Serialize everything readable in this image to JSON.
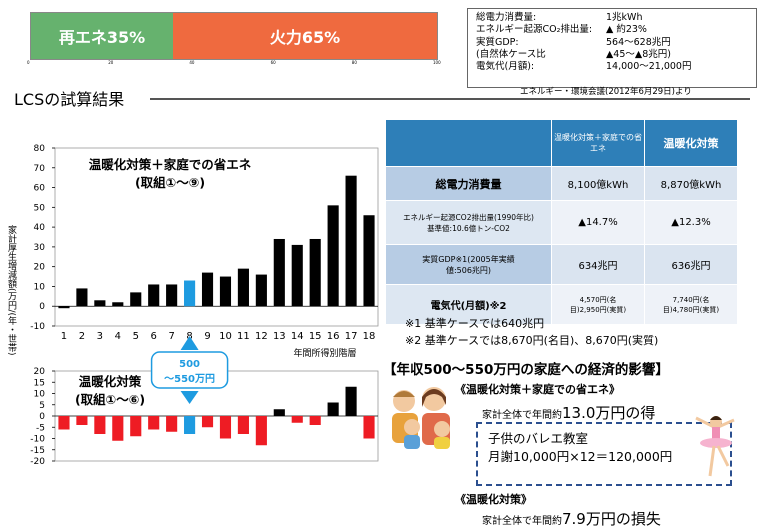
{
  "energy_mix": {
    "renewable_label": "再エネ35%",
    "thermal_label": "火力65%",
    "renewable_pct": 35,
    "thermal_pct": 65,
    "ticks": [
      "0",
      "20",
      "40",
      "60",
      "80",
      "100"
    ]
  },
  "summary_box": {
    "rows": [
      {
        "k": "総電力消費量:",
        "v": "1兆kWh"
      },
      {
        "k": "エネルギー起源CO₂排出量:",
        "v": "▲ 約23%"
      },
      {
        "k": "実質GDP:",
        "v": "564～628兆円"
      },
      {
        "k": "(自然体ケース比",
        "v": "▲45～▲8兆円)"
      },
      {
        "k": "電気代(月額):",
        "v": "14,000～21,000円"
      }
    ]
  },
  "source": "エネルギー・環境会議(2012年6月29日)より",
  "section_title": "LCSの試算結果",
  "y_axis_label": "家計厚生増減額(万円/(年・世帯)",
  "chart_data": [
    {
      "type": "bar",
      "title": "温暖化対策＋家庭での省エネ",
      "subtitle": "(取組①～⑨)",
      "xlabel": "年間所得別階層",
      "categories": [
        "1",
        "2",
        "3",
        "4",
        "5",
        "6",
        "7",
        "8",
        "9",
        "10",
        "11",
        "12",
        "13",
        "14",
        "15",
        "16",
        "17",
        "18"
      ],
      "values": [
        -1,
        9,
        3,
        2,
        7,
        11,
        11,
        13,
        17,
        15,
        19,
        16,
        34,
        31,
        34,
        51,
        66,
        46
      ],
      "highlight_index": 7,
      "ylim": [
        -10,
        80
      ],
      "yticks": [
        -10,
        0,
        10,
        20,
        30,
        40,
        50,
        60,
        70,
        80
      ]
    },
    {
      "type": "bar",
      "title": "温暖化対策",
      "subtitle": "(取組①～⑥)",
      "categories": [
        "1",
        "2",
        "3",
        "4",
        "5",
        "6",
        "7",
        "8",
        "9",
        "10",
        "11",
        "12",
        "13",
        "14",
        "15",
        "16",
        "17",
        "18"
      ],
      "values": [
        -6,
        -4,
        -8,
        -11,
        -9,
        -6,
        -7,
        -8,
        -5,
        -10,
        -8,
        -13,
        3,
        -3,
        -4,
        6,
        13,
        -10
      ],
      "highlight_index": 7,
      "ylim": [
        -20,
        20
      ],
      "yticks": [
        -20,
        -15,
        -10,
        -5,
        0,
        5,
        10,
        15,
        20
      ]
    }
  ],
  "callout": {
    "line1": "500",
    "line2": "～550万円"
  },
  "table": {
    "header": [
      "",
      "温暖化対策＋家庭での省エネ",
      "温暖化対策"
    ],
    "rows": [
      {
        "label": "総電力消費量",
        "a": "8,100億kWh",
        "b": "8,870億kWh"
      },
      {
        "label": "エネルギー起源CO2排出量(1990年比)基準値:10.6億トン-CO2",
        "a": "▲14.7%",
        "b": "▲12.3%"
      },
      {
        "label": "実質GDP※1(2005年実績値:506兆円)",
        "a": "634兆円",
        "b": "636兆円"
      },
      {
        "label": "電気代(月額)※2",
        "a": "4,570円(名目)2,950円(実質)",
        "b": "7,740円(名目)4,780円(実質)"
      }
    ]
  },
  "notes": {
    "n1": "※1  基準ケースでは640兆円",
    "n2": "※2  基準ケースでは8,670円(名目)、8,670円(実質)"
  },
  "econ": {
    "title": "【年収500～550万円の家庭への経済的影響】",
    "case1": "《温暖化対策＋家庭での省エネ》",
    "saving_prefix": "家計全体で年間約",
    "saving_value": "13.0万円の得",
    "ballet_title": "子供のバレエ教室",
    "ballet_detail": "月謝10,000円×12＝120,000円",
    "case2": "《温暖化対策》",
    "loss_prefix": "家計全体で年間約",
    "loss_value": "7.9万円の損失"
  },
  "colors": {
    "renewable": "#66b26e",
    "thermal": "#ef6a3f",
    "bar_main": "#000000",
    "bar_highlight": "#1e9be0",
    "bar_neg": "#ee1c24",
    "table_head": "#2e7fb8"
  }
}
